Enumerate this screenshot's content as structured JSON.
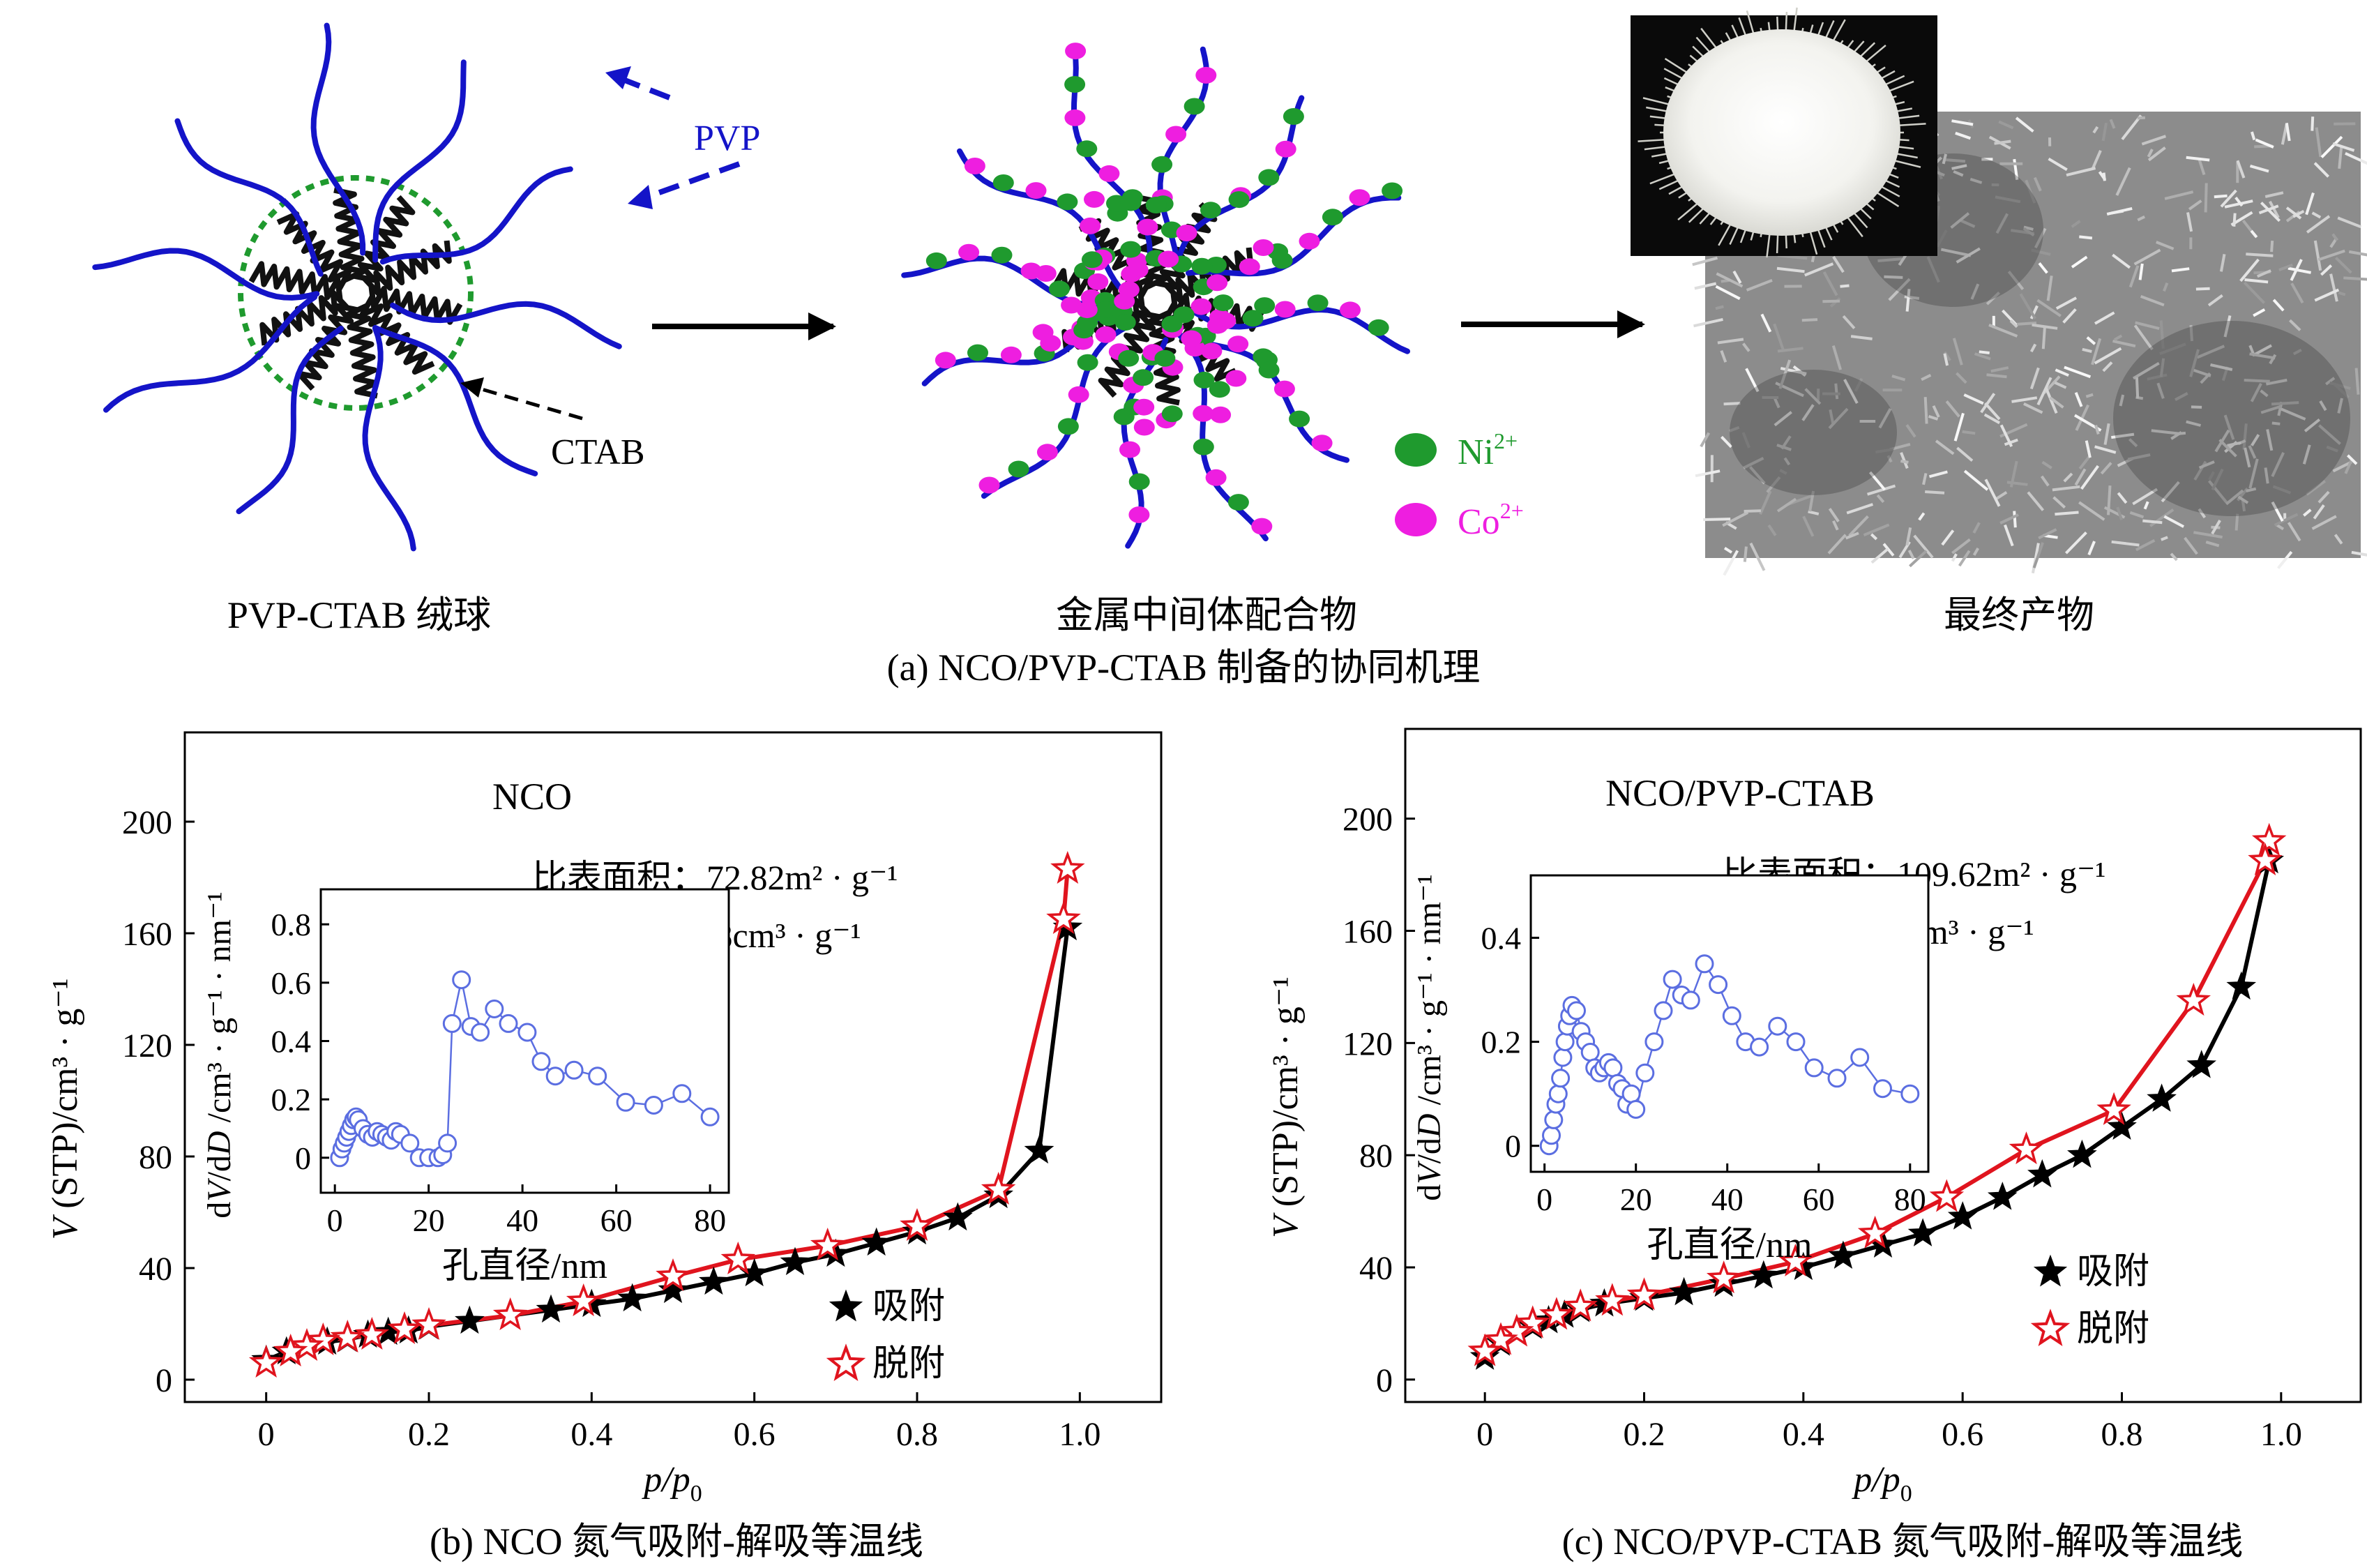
{
  "panel_a": {
    "caption": "(a) NCO/PVP-CTAB 制备的协同机理",
    "label_pvp_ctab_ball": "PVP-CTAB 绒球",
    "label_metal_intermediate": "金属中间体配合物",
    "label_final_product": "最终产物",
    "pointer_pvp": "PVP",
    "pointer_ctab": "CTAB",
    "legend_ni": "Ni",
    "legend_ni_sup": "2+",
    "legend_co": "Co",
    "legend_co_sup": "2+",
    "colors": {
      "pvp": "#1414c8",
      "ctab": "#111111",
      "ni": "#1f9a2e",
      "co": "#ee1ee0",
      "micelle_outline": "#1f9a2e"
    }
  },
  "chart_data": [
    {
      "type": "line",
      "panel": "b",
      "caption": "(b) NCO 氮气吸附-解吸等温线",
      "title": "NCO",
      "ylabel_main": "V",
      "ylabel_rest": " (STP)/cm³ · g⁻¹",
      "xlabel_main": "p/p",
      "xlabel_sub": "0",
      "xlim": [
        -0.1,
        1.1
      ],
      "ylim": [
        -8,
        232
      ],
      "x_ticks": [
        "0",
        "0.2",
        "0.4",
        "0.6",
        "0.8",
        "1.0"
      ],
      "y_ticks": [
        "0",
        "40",
        "80",
        "120",
        "160",
        "200"
      ],
      "annotation_area": "比表面积：72.82m² · g⁻¹",
      "annotation_volume": "孔体积：0.28cm³ · g⁻¹",
      "legend_position": "lower-right",
      "series": [
        {
          "name": "吸附",
          "color": "#000000",
          "marker": "filled-star",
          "x": [
            0.0,
            0.025,
            0.05,
            0.075,
            0.1,
            0.125,
            0.15,
            0.175,
            0.2,
            0.25,
            0.3,
            0.35,
            0.4,
            0.45,
            0.5,
            0.55,
            0.6,
            0.65,
            0.7,
            0.75,
            0.8,
            0.85,
            0.9,
            0.95,
            0.985
          ],
          "y": [
            7,
            10,
            12,
            13.5,
            14.5,
            16,
            17,
            17.5,
            19,
            21,
            23,
            25,
            27,
            29,
            32,
            35,
            38,
            42,
            45,
            49,
            53,
            58,
            66,
            82,
            162
          ]
        },
        {
          "name": "脱附",
          "color": "#e0141e",
          "marker": "open-star",
          "x": [
            0.985,
            0.98,
            0.9,
            0.8,
            0.69,
            0.58,
            0.5,
            0.39,
            0.3,
            0.2,
            0.17,
            0.13,
            0.1,
            0.07,
            0.05,
            0.03,
            0.0
          ],
          "y": [
            183,
            165,
            68,
            55,
            48,
            43,
            37,
            28,
            23,
            19.5,
            18,
            16,
            15,
            14,
            12,
            10,
            6
          ]
        }
      ],
      "inset": {
        "color": "#5b6ee1",
        "xlabel": "孔直径/nm",
        "ylabel_parts": [
          "d",
          "V",
          "/d",
          "D",
          " /cm³ · g⁻¹ · nm⁻¹"
        ],
        "xlim": [
          -3,
          84
        ],
        "ylim": [
          -0.12,
          0.92
        ],
        "x_ticks": [
          "0",
          "20",
          "40",
          "60",
          "80"
        ],
        "y_ticks": [
          "0",
          "0.2",
          "0.4",
          "0.6",
          "0.8"
        ],
        "x": [
          1,
          1.5,
          2,
          2.5,
          3,
          3.5,
          4,
          4.5,
          5,
          6,
          7,
          8,
          9,
          10,
          11,
          12,
          13,
          14,
          16,
          18,
          20,
          22,
          23,
          24,
          25,
          27,
          29,
          31,
          34,
          37,
          41,
          44,
          47,
          51,
          56,
          62,
          68,
          74,
          80
        ],
        "y": [
          0.0,
          0.03,
          0.05,
          0.07,
          0.09,
          0.11,
          0.13,
          0.14,
          0.13,
          0.1,
          0.08,
          0.07,
          0.09,
          0.08,
          0.07,
          0.06,
          0.09,
          0.08,
          0.05,
          0.0,
          0.0,
          0.0,
          0.01,
          0.05,
          0.46,
          0.61,
          0.45,
          0.43,
          0.51,
          0.46,
          0.43,
          0.33,
          0.28,
          0.3,
          0.28,
          0.19,
          0.18,
          0.22,
          0.14
        ]
      }
    },
    {
      "type": "line",
      "panel": "c",
      "caption": "(c) NCO/PVP-CTAB 氮气吸附-解吸等温线",
      "title": "NCO/PVP-CTAB",
      "ylabel_main": "V",
      "ylabel_rest": " (STP)/cm³ · g⁻¹",
      "xlabel_main": "p/p",
      "xlabel_sub": "0",
      "xlim": [
        -0.1,
        1.1
      ],
      "ylim": [
        -8,
        232
      ],
      "x_ticks": [
        "0",
        "0.2",
        "0.4",
        "0.6",
        "0.8",
        "1.0"
      ],
      "y_ticks": [
        "0",
        "40",
        "80",
        "120",
        "160",
        "200"
      ],
      "annotation_area": "比表面积：109.62m² · g⁻¹",
      "annotation_volume": "孔体积：3.0cm³ · g⁻¹",
      "legend_position": "lower-right",
      "series": [
        {
          "name": "吸附",
          "color": "#000000",
          "marker": "filled-star",
          "x": [
            0.0,
            0.02,
            0.04,
            0.06,
            0.08,
            0.1,
            0.12,
            0.15,
            0.2,
            0.25,
            0.3,
            0.35,
            0.4,
            0.45,
            0.5,
            0.55,
            0.6,
            0.65,
            0.7,
            0.75,
            0.8,
            0.85,
            0.9,
            0.95,
            0.985
          ],
          "y": [
            8,
            13,
            17,
            19,
            21,
            23,
            25,
            27,
            29,
            31,
            34,
            37,
            40,
            44,
            48,
            52,
            58,
            65,
            73,
            80,
            90,
            100,
            112,
            140,
            185
          ]
        },
        {
          "name": "脱附",
          "color": "#e0141e",
          "marker": "open-star",
          "x": [
            0.985,
            0.98,
            0.89,
            0.79,
            0.68,
            0.58,
            0.49,
            0.39,
            0.3,
            0.2,
            0.16,
            0.12,
            0.09,
            0.06,
            0.04,
            0.02,
            0.0
          ],
          "y": [
            192,
            185,
            135,
            96,
            82,
            65,
            52,
            42,
            36,
            30,
            28,
            26,
            23,
            20,
            17,
            14,
            10
          ]
        }
      ],
      "inset": {
        "color": "#5b6ee1",
        "xlabel": "孔直径/nm",
        "ylabel_parts": [
          "d",
          "V",
          "/d",
          "D",
          " /cm³ · g⁻¹ · nm⁻¹"
        ],
        "xlim": [
          -3,
          84
        ],
        "ylim": [
          -0.05,
          0.52
        ],
        "x_ticks": [
          "0",
          "20",
          "40",
          "60",
          "80"
        ],
        "y_ticks": [
          "0",
          "0.2",
          "0.4"
        ],
        "x": [
          1,
          1.5,
          2,
          2.5,
          3,
          3.5,
          4,
          4.5,
          5,
          5.5,
          6,
          7,
          8,
          9,
          10,
          11,
          12,
          13,
          14,
          15,
          16,
          17,
          18,
          19,
          20,
          22,
          24,
          26,
          28,
          30,
          32,
          35,
          38,
          41,
          44,
          47,
          51,
          55,
          59,
          64,
          69,
          74,
          80
        ],
        "y": [
          0.0,
          0.02,
          0.05,
          0.08,
          0.1,
          0.13,
          0.17,
          0.2,
          0.23,
          0.25,
          0.27,
          0.26,
          0.22,
          0.2,
          0.18,
          0.15,
          0.14,
          0.15,
          0.16,
          0.15,
          0.12,
          0.11,
          0.08,
          0.1,
          0.07,
          0.14,
          0.2,
          0.26,
          0.32,
          0.29,
          0.28,
          0.35,
          0.31,
          0.25,
          0.2,
          0.19,
          0.23,
          0.2,
          0.15,
          0.13,
          0.17,
          0.11,
          0.1
        ]
      }
    }
  ]
}
